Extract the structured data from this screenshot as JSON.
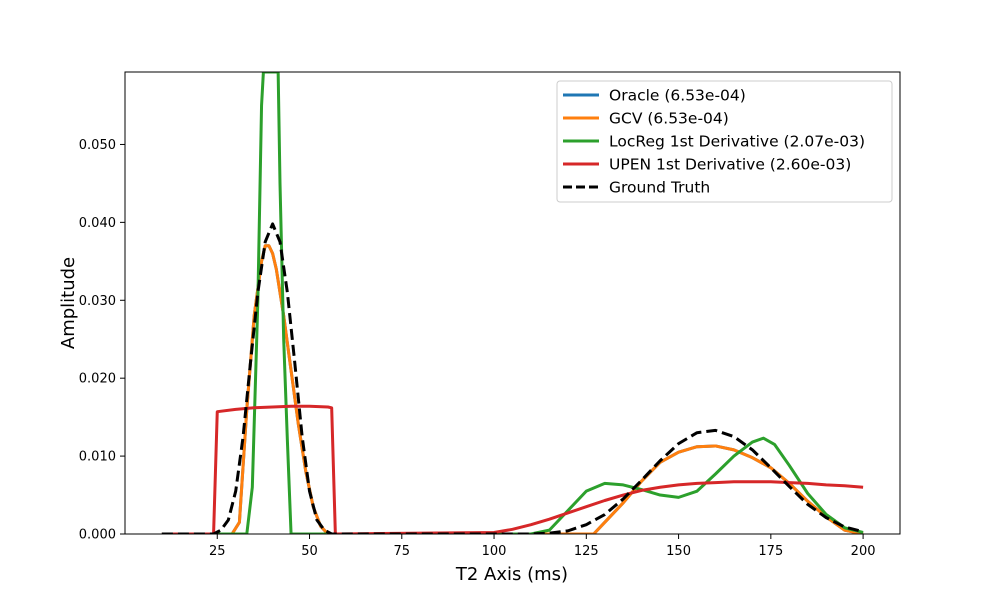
{
  "chart_data": {
    "type": "line",
    "title": "",
    "xlabel": "T2 Axis (ms)",
    "ylabel": "Amplitude",
    "xlim": [
      0,
      210
    ],
    "ylim": [
      0,
      0.0593
    ],
    "xticks": [
      "25",
      "50",
      "75",
      "100",
      "125",
      "150",
      "175",
      "200"
    ],
    "yticks": [
      "0.000",
      "0.010",
      "0.020",
      "0.030",
      "0.040",
      "0.050"
    ],
    "grid": false,
    "legend_position": "top-right",
    "series": [
      {
        "name": "Oracle (6.53e-04)",
        "color": "#1f77b4",
        "style": "solid",
        "x": [
          10,
          25,
          29,
          31,
          33,
          35,
          37,
          38,
          39,
          40,
          41,
          43,
          45,
          47,
          49,
          51,
          53,
          55,
          100,
          120,
          127,
          130,
          135,
          140,
          145,
          150,
          155,
          160,
          165,
          170,
          175,
          180,
          185,
          190,
          195,
          200
        ],
        "y": [
          0,
          0,
          0,
          0.0015,
          0.016,
          0.028,
          0.035,
          0.037,
          0.037,
          0.036,
          0.034,
          0.028,
          0.021,
          0.014,
          0.008,
          0.0035,
          0.001,
          0,
          0,
          0,
          0,
          0.0015,
          0.004,
          0.0068,
          0.0092,
          0.0105,
          0.0112,
          0.0113,
          0.0108,
          0.0098,
          0.0085,
          0.0065,
          0.0042,
          0.0022,
          0.0005,
          0
        ]
      },
      {
        "name": "GCV (6.53e-04)",
        "color": "#ff7f0e",
        "style": "solid",
        "x": [
          10,
          25,
          29,
          31,
          33,
          35,
          37,
          38,
          39,
          40,
          41,
          43,
          45,
          47,
          49,
          51,
          53,
          55,
          100,
          120,
          127,
          130,
          135,
          140,
          145,
          150,
          155,
          160,
          165,
          170,
          175,
          180,
          185,
          190,
          195,
          200
        ],
        "y": [
          0,
          0,
          0,
          0.0015,
          0.016,
          0.028,
          0.035,
          0.037,
          0.037,
          0.036,
          0.034,
          0.028,
          0.021,
          0.014,
          0.008,
          0.0035,
          0.001,
          0,
          0,
          0,
          0,
          0.0015,
          0.004,
          0.0068,
          0.0092,
          0.0105,
          0.0112,
          0.0113,
          0.0108,
          0.0098,
          0.0085,
          0.0065,
          0.0042,
          0.0022,
          0.0005,
          0
        ]
      },
      {
        "name": "LocReg 1st Derivative (2.07e-03)",
        "color": "#2ca02c",
        "style": "solid",
        "x": [
          10,
          33,
          34.5,
          36,
          37,
          37.5,
          38,
          39,
          40,
          41,
          41.5,
          42,
          43,
          44,
          45,
          100,
          110,
          115,
          120,
          125,
          130,
          135,
          140,
          145,
          150,
          155,
          160,
          165,
          170,
          173,
          176,
          180,
          185,
          190,
          195,
          200
        ],
        "y": [
          0,
          0,
          0.006,
          0.03,
          0.055,
          0.0593,
          0.0593,
          0.0593,
          0.0593,
          0.0593,
          0.0593,
          0.045,
          0.025,
          0.012,
          0,
          0,
          0,
          0.0005,
          0.003,
          0.0055,
          0.0065,
          0.0063,
          0.0057,
          0.005,
          0.0047,
          0.0055,
          0.0077,
          0.01,
          0.0118,
          0.0123,
          0.0115,
          0.0088,
          0.0052,
          0.0025,
          0.0008,
          0.0002
        ]
      },
      {
        "name": "UPEN 1st Derivative (2.60e-03)",
        "color": "#d62728",
        "style": "solid",
        "x": [
          10,
          24,
          25,
          30,
          35,
          40,
          45,
          50,
          55,
          56,
          57,
          100,
          105,
          110,
          115,
          120,
          125,
          130,
          135,
          140,
          145,
          150,
          155,
          160,
          165,
          170,
          175,
          180,
          185,
          190,
          195,
          200
        ],
        "y": [
          0,
          0,
          0.0157,
          0.016,
          0.0162,
          0.0163,
          0.0164,
          0.0164,
          0.0163,
          0.0162,
          0,
          0.0002,
          0.0006,
          0.0012,
          0.0019,
          0.0027,
          0.0035,
          0.0043,
          0.005,
          0.0056,
          0.006,
          0.0063,
          0.0065,
          0.0066,
          0.0067,
          0.0067,
          0.0067,
          0.0066,
          0.0065,
          0.0063,
          0.0062,
          0.006
        ]
      },
      {
        "name": "Ground Truth",
        "color": "#000000",
        "style": "dashed",
        "x": [
          10,
          24,
          26,
          28,
          30,
          32,
          34,
          36,
          38,
          40,
          42,
          44,
          46,
          48,
          50,
          52,
          54,
          56,
          100,
          110,
          115,
          120,
          125,
          130,
          135,
          140,
          145,
          150,
          155,
          160,
          165,
          170,
          175,
          180,
          185,
          190,
          195,
          200
        ],
        "y": [
          0,
          0,
          0.0005,
          0.0018,
          0.0055,
          0.0125,
          0.022,
          0.031,
          0.0375,
          0.0398,
          0.0375,
          0.031,
          0.022,
          0.0125,
          0.0055,
          0.0018,
          0.0005,
          0,
          0,
          0,
          0.0001,
          0.0004,
          0.0012,
          0.0025,
          0.0045,
          0.0069,
          0.0094,
          0.0116,
          0.013,
          0.0133,
          0.0125,
          0.0108,
          0.0085,
          0.0061,
          0.0038,
          0.0021,
          0.0009,
          0.0003
        ]
      }
    ]
  }
}
